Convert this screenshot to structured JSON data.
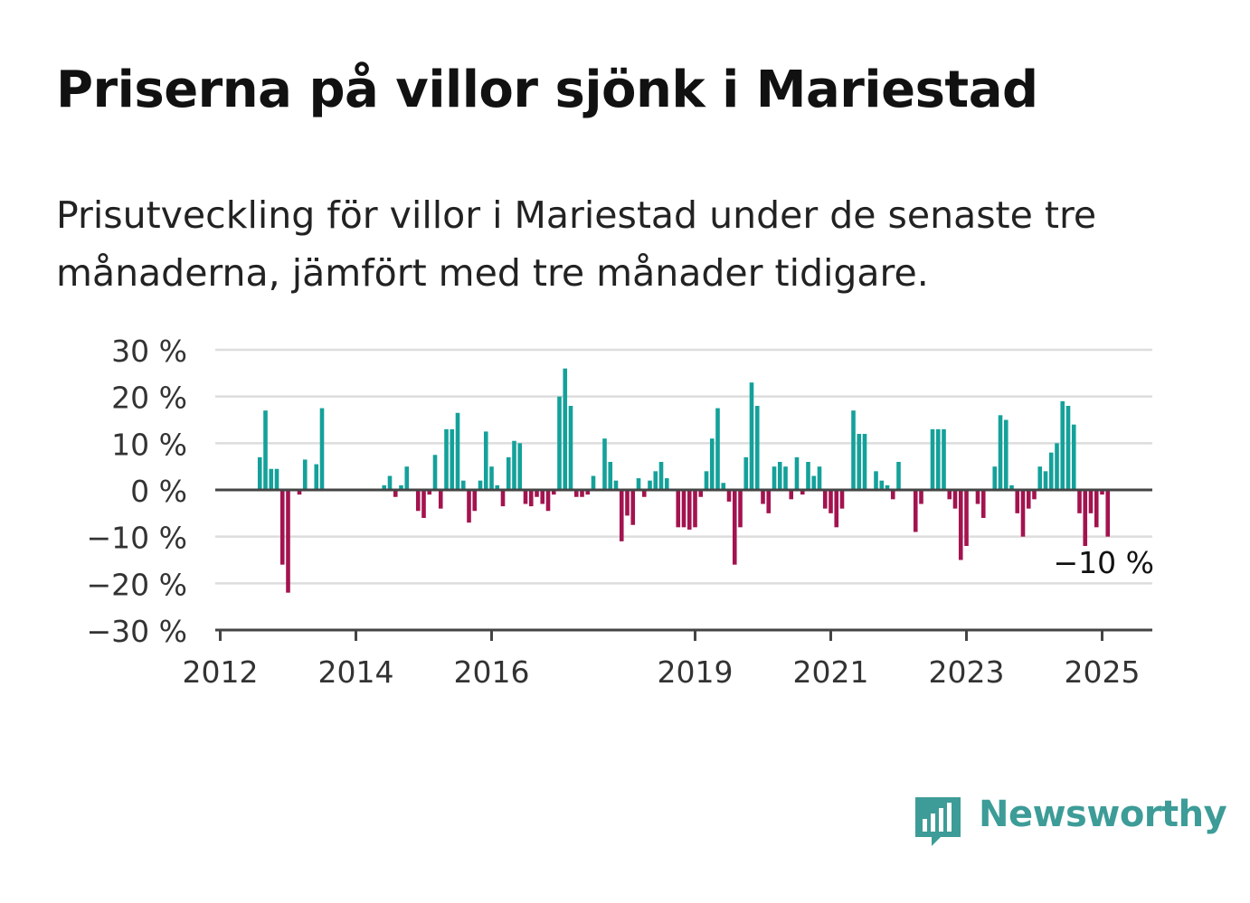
{
  "title": "Priserna på villor sjönk i Mariestad",
  "subtitle": "Prisutveckling för villor i Mariestad under de senaste tre månaderna, jämfört med tre månader tidigare.",
  "brand": {
    "name": "Newsworthy",
    "color": "#3d9c97",
    "icon": "bar-chart-icon"
  },
  "colors": {
    "positive": "#14a19a",
    "negative": "#a3134f",
    "grid": "#dddddd",
    "axis": "#444444"
  },
  "chart_data": {
    "type": "bar",
    "ylim": [
      -30,
      30
    ],
    "y_ticks": [
      30,
      20,
      10,
      0,
      -10,
      -20,
      -30
    ],
    "y_tick_labels": [
      "30 %",
      "20 %",
      "10 %",
      "0 %",
      "−10 %",
      "−20 %",
      "−30 %"
    ],
    "x_ticks": [
      "2012",
      "2014",
      "2016",
      "2019",
      "2021",
      "2023",
      "2025"
    ],
    "x_tick_positions": [
      "2012-01",
      "2014-01",
      "2016-01",
      "2019-01",
      "2021-01",
      "2023-01",
      "2025-01"
    ],
    "annotation": {
      "text": "−10 %",
      "month": "2025-01"
    },
    "grid": true,
    "series": [
      {
        "points": [
          [
            "2012-08",
            7
          ],
          [
            "2012-09",
            17
          ],
          [
            "2012-10",
            4.5
          ],
          [
            "2012-11",
            4.5
          ],
          [
            "2012-12",
            -16
          ],
          [
            "2013-01",
            -22
          ],
          [
            "2013-03",
            -1
          ],
          [
            "2013-04",
            6.5
          ],
          [
            "2013-06",
            5.5
          ],
          [
            "2013-07",
            17.5
          ],
          [
            "2014-06",
            1
          ],
          [
            "2014-07",
            3
          ],
          [
            "2014-08",
            -1.5
          ],
          [
            "2014-09",
            1
          ],
          [
            "2014-10",
            5
          ],
          [
            "2014-12",
            -4.5
          ],
          [
            "2015-01",
            -6
          ],
          [
            "2015-02",
            -1
          ],
          [
            "2015-03",
            7.5
          ],
          [
            "2015-04",
            -4
          ],
          [
            "2015-05",
            13
          ],
          [
            "2015-06",
            13
          ],
          [
            "2015-07",
            16.5
          ],
          [
            "2015-08",
            2
          ],
          [
            "2015-09",
            -7
          ],
          [
            "2015-10",
            -4.5
          ],
          [
            "2015-11",
            2
          ],
          [
            "2015-12",
            12.5
          ],
          [
            "2016-01",
            5
          ],
          [
            "2016-02",
            1
          ],
          [
            "2016-03",
            -3.5
          ],
          [
            "2016-04",
            7
          ],
          [
            "2016-05",
            10.5
          ],
          [
            "2016-06",
            10
          ],
          [
            "2016-07",
            -3
          ],
          [
            "2016-08",
            -3.5
          ],
          [
            "2016-09",
            -1.5
          ],
          [
            "2016-10",
            -3
          ],
          [
            "2016-11",
            -4.5
          ],
          [
            "2016-12",
            -1
          ],
          [
            "2017-01",
            20
          ],
          [
            "2017-02",
            26
          ],
          [
            "2017-03",
            18
          ],
          [
            "2017-04",
            -1.5
          ],
          [
            "2017-05",
            -1.5
          ],
          [
            "2017-06",
            -1
          ],
          [
            "2017-07",
            3
          ],
          [
            "2017-09",
            11
          ],
          [
            "2017-10",
            6
          ],
          [
            "2017-11",
            2
          ],
          [
            "2017-12",
            -11
          ],
          [
            "2018-01",
            -5.5
          ],
          [
            "2018-02",
            -7.5
          ],
          [
            "2018-03",
            2.5
          ],
          [
            "2018-04",
            -1.5
          ],
          [
            "2018-05",
            2
          ],
          [
            "2018-06",
            4
          ],
          [
            "2018-07",
            6
          ],
          [
            "2018-08",
            2.5
          ],
          [
            "2018-10",
            -8
          ],
          [
            "2018-11",
            -8
          ],
          [
            "2018-12",
            -8.5
          ],
          [
            "2019-01",
            -8
          ],
          [
            "2019-02",
            -1.5
          ],
          [
            "2019-03",
            4
          ],
          [
            "2019-04",
            11
          ],
          [
            "2019-05",
            17.5
          ],
          [
            "2019-06",
            1.5
          ],
          [
            "2019-07",
            -2.5
          ],
          [
            "2019-08",
            -16
          ],
          [
            "2019-09",
            -8
          ],
          [
            "2019-10",
            7
          ],
          [
            "2019-11",
            23
          ],
          [
            "2019-12",
            18
          ],
          [
            "2020-01",
            -3
          ],
          [
            "2020-02",
            -5
          ],
          [
            "2020-03",
            5
          ],
          [
            "2020-04",
            6
          ],
          [
            "2020-05",
            5
          ],
          [
            "2020-06",
            -2
          ],
          [
            "2020-07",
            7
          ],
          [
            "2020-08",
            -1
          ],
          [
            "2020-09",
            6
          ],
          [
            "2020-10",
            3
          ],
          [
            "2020-11",
            5
          ],
          [
            "2020-12",
            -4
          ],
          [
            "2021-01",
            -5
          ],
          [
            "2021-02",
            -8
          ],
          [
            "2021-03",
            -4
          ],
          [
            "2021-05",
            17
          ],
          [
            "2021-06",
            12
          ],
          [
            "2021-07",
            12
          ],
          [
            "2021-09",
            4
          ],
          [
            "2021-10",
            2
          ],
          [
            "2021-11",
            1
          ],
          [
            "2021-12",
            -2
          ],
          [
            "2022-01",
            6
          ],
          [
            "2022-04",
            -9
          ],
          [
            "2022-05",
            -3
          ],
          [
            "2022-07",
            13
          ],
          [
            "2022-08",
            13
          ],
          [
            "2022-09",
            13
          ],
          [
            "2022-10",
            -2
          ],
          [
            "2022-11",
            -4
          ],
          [
            "2022-12",
            -15
          ],
          [
            "2023-01",
            -12
          ],
          [
            "2023-03",
            -3
          ],
          [
            "2023-04",
            -6
          ],
          [
            "2023-06",
            5
          ],
          [
            "2023-07",
            16
          ],
          [
            "2023-08",
            15
          ],
          [
            "2023-09",
            1
          ],
          [
            "2023-10",
            -5
          ],
          [
            "2023-11",
            -10
          ],
          [
            "2023-12",
            -4
          ],
          [
            "2024-01",
            -2
          ],
          [
            "2024-02",
            5
          ],
          [
            "2024-03",
            4
          ],
          [
            "2024-04",
            8
          ],
          [
            "2024-05",
            10
          ],
          [
            "2024-06",
            19
          ],
          [
            "2024-07",
            18
          ],
          [
            "2024-08",
            14
          ],
          [
            "2024-09",
            -5
          ],
          [
            "2024-10",
            -12
          ],
          [
            "2024-11",
            -5
          ],
          [
            "2024-12",
            -8
          ],
          [
            "2025-01",
            -1
          ],
          [
            "2025-02",
            -10
          ]
        ]
      }
    ]
  }
}
